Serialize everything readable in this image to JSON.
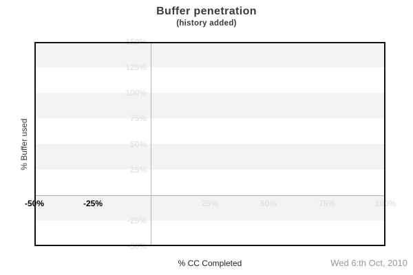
{
  "header": {
    "title": "Buffer penetration",
    "subtitle": "(history added)"
  },
  "axes": {
    "y_title": "% Buffer used",
    "x_title": "% CC Completed"
  },
  "footer": {
    "date": "Wed 6:th Oct, 2010"
  },
  "colors": {
    "background": "#ffffff",
    "band_gray": "#f3f3f3",
    "plot_border": "#111111",
    "zero_line": "#b5b5b5",
    "faint_label": "#e4e4e4",
    "dark_label": "#000000",
    "title_text": "#3a3a3a",
    "date_text": "#9a9a9a"
  },
  "chart_data": {
    "type": "line",
    "title": "Buffer penetration",
    "subtitle": "(history added)",
    "xlabel": "% CC Completed",
    "ylabel": "% Buffer used",
    "xlim": [
      -50,
      100
    ],
    "ylim": [
      -50,
      150
    ],
    "series": [],
    "x_ticks": [
      {
        "value": -50,
        "label": "-50%",
        "emphasis": true
      },
      {
        "value": -25,
        "label": "-25%",
        "emphasis": true
      },
      {
        "value": 25,
        "label": "25%",
        "emphasis": false
      },
      {
        "value": 50,
        "label": "50%",
        "emphasis": false
      },
      {
        "value": 75,
        "label": "75%",
        "emphasis": false
      },
      {
        "value": 100,
        "label": "100%",
        "emphasis": false
      }
    ],
    "y_ticks": [
      {
        "value": 150,
        "label": "150%"
      },
      {
        "value": 125,
        "label": "125%"
      },
      {
        "value": 100,
        "label": "100%"
      },
      {
        "value": 75,
        "label": "75%"
      },
      {
        "value": 50,
        "label": "50%"
      },
      {
        "value": 25,
        "label": "25%"
      },
      {
        "value": -25,
        "label": "-25%"
      },
      {
        "value": -50,
        "label": "-50%"
      }
    ],
    "layout_hints": {
      "grid": "alternating horizontal gray/white bands every 25 units, gray band starts at top (150 to 125)",
      "axis_lines": "gray zero lines crossing at (0,0); y tick labels right-aligned left of x=0 line; x tick labels centered below y=0 line",
      "plot_empty": true,
      "legend": "none"
    }
  }
}
